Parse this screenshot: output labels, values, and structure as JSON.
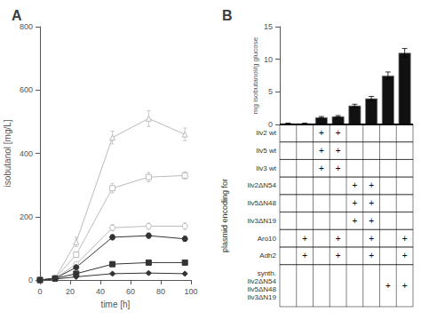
{
  "chart_data": [
    {
      "type": "line",
      "title": "A",
      "xlabel": "time [h]",
      "ylabel": "isobutanol [mg/L]",
      "x": [
        0,
        10,
        24,
        48,
        72,
        96
      ],
      "xlim": [
        0,
        100
      ],
      "xticks": [
        0,
        20,
        40,
        60,
        80,
        100
      ],
      "ylim": [
        0,
        800
      ],
      "yticks": [
        0,
        200,
        400,
        600,
        800
      ],
      "grid": false,
      "series": [
        {
          "color": "#bbbbbb",
          "marker": "triangle_open",
          "values": [
            0,
            5,
            120,
            450,
            510,
            460
          ],
          "errors": [
            0,
            2,
            15,
            20,
            25,
            20
          ]
        },
        {
          "color": "#bbbbbb",
          "marker": "square_open",
          "values": [
            0,
            5,
            80,
            290,
            325,
            330
          ],
          "errors": [
            0,
            2,
            8,
            15,
            15,
            12
          ]
        },
        {
          "color": "#bbbbbb",
          "marker": "circle_open",
          "values": [
            0,
            5,
            50,
            165,
            170,
            170
          ],
          "errors": [
            0,
            2,
            5,
            10,
            10,
            10
          ]
        },
        {
          "color": "#333333",
          "marker": "circle",
          "values": [
            0,
            5,
            40,
            135,
            140,
            130
          ],
          "errors": [
            0,
            2,
            5,
            8,
            8,
            8
          ]
        },
        {
          "color": "#333333",
          "marker": "square",
          "values": [
            0,
            5,
            20,
            50,
            55,
            55
          ],
          "errors": [
            0,
            2,
            3,
            5,
            5,
            5
          ]
        },
        {
          "color": "#333333",
          "marker": "diamond",
          "values": [
            0,
            3,
            10,
            20,
            22,
            20
          ],
          "errors": [
            0,
            1,
            2,
            3,
            3,
            3
          ]
        }
      ]
    },
    {
      "type": "bar",
      "title": "B",
      "ylabel": "mg isobutanol/g glucose",
      "categories": [
        null,
        null,
        null,
        null,
        null,
        null,
        null,
        null
      ],
      "values": [
        0.15,
        0.15,
        1.1,
        1.25,
        2.9,
        4.0,
        7.5,
        11.0
      ],
      "errors": [
        0.05,
        0.05,
        0.12,
        0.12,
        0.2,
        0.3,
        0.55,
        0.65
      ],
      "colors": [
        "#ffffff",
        "#ffffff",
        "#111111",
        "#111111",
        "#111111",
        "#111111",
        "#111111",
        "#111111"
      ],
      "ylim": [
        0,
        15
      ],
      "yticks": [
        0,
        5,
        10,
        15
      ],
      "grid": false,
      "row_labels": [
        "Ilv2 wt",
        "Ilv5 wt",
        "Ilv3 wt",
        "Ilv2ΔN54",
        "Ilv5ΔN48",
        "Ilv3ΔN19",
        "Aro10",
        "Adh2",
        "synth.\nIlv2ΔN54\nIlv5ΔN48\nIlv3ΔN19"
      ],
      "plus_marks": [
        [
          2,
          3
        ],
        [
          2,
          3
        ],
        [
          2,
          3
        ],
        [
          4,
          5
        ],
        [
          4,
          5
        ],
        [
          4,
          5
        ],
        [
          1,
          3,
          5,
          7
        ],
        [
          1,
          3,
          5,
          7
        ],
        [
          6,
          7
        ]
      ],
      "cell_mark": "+",
      "side_label": "plasmid encoding for"
    }
  ]
}
